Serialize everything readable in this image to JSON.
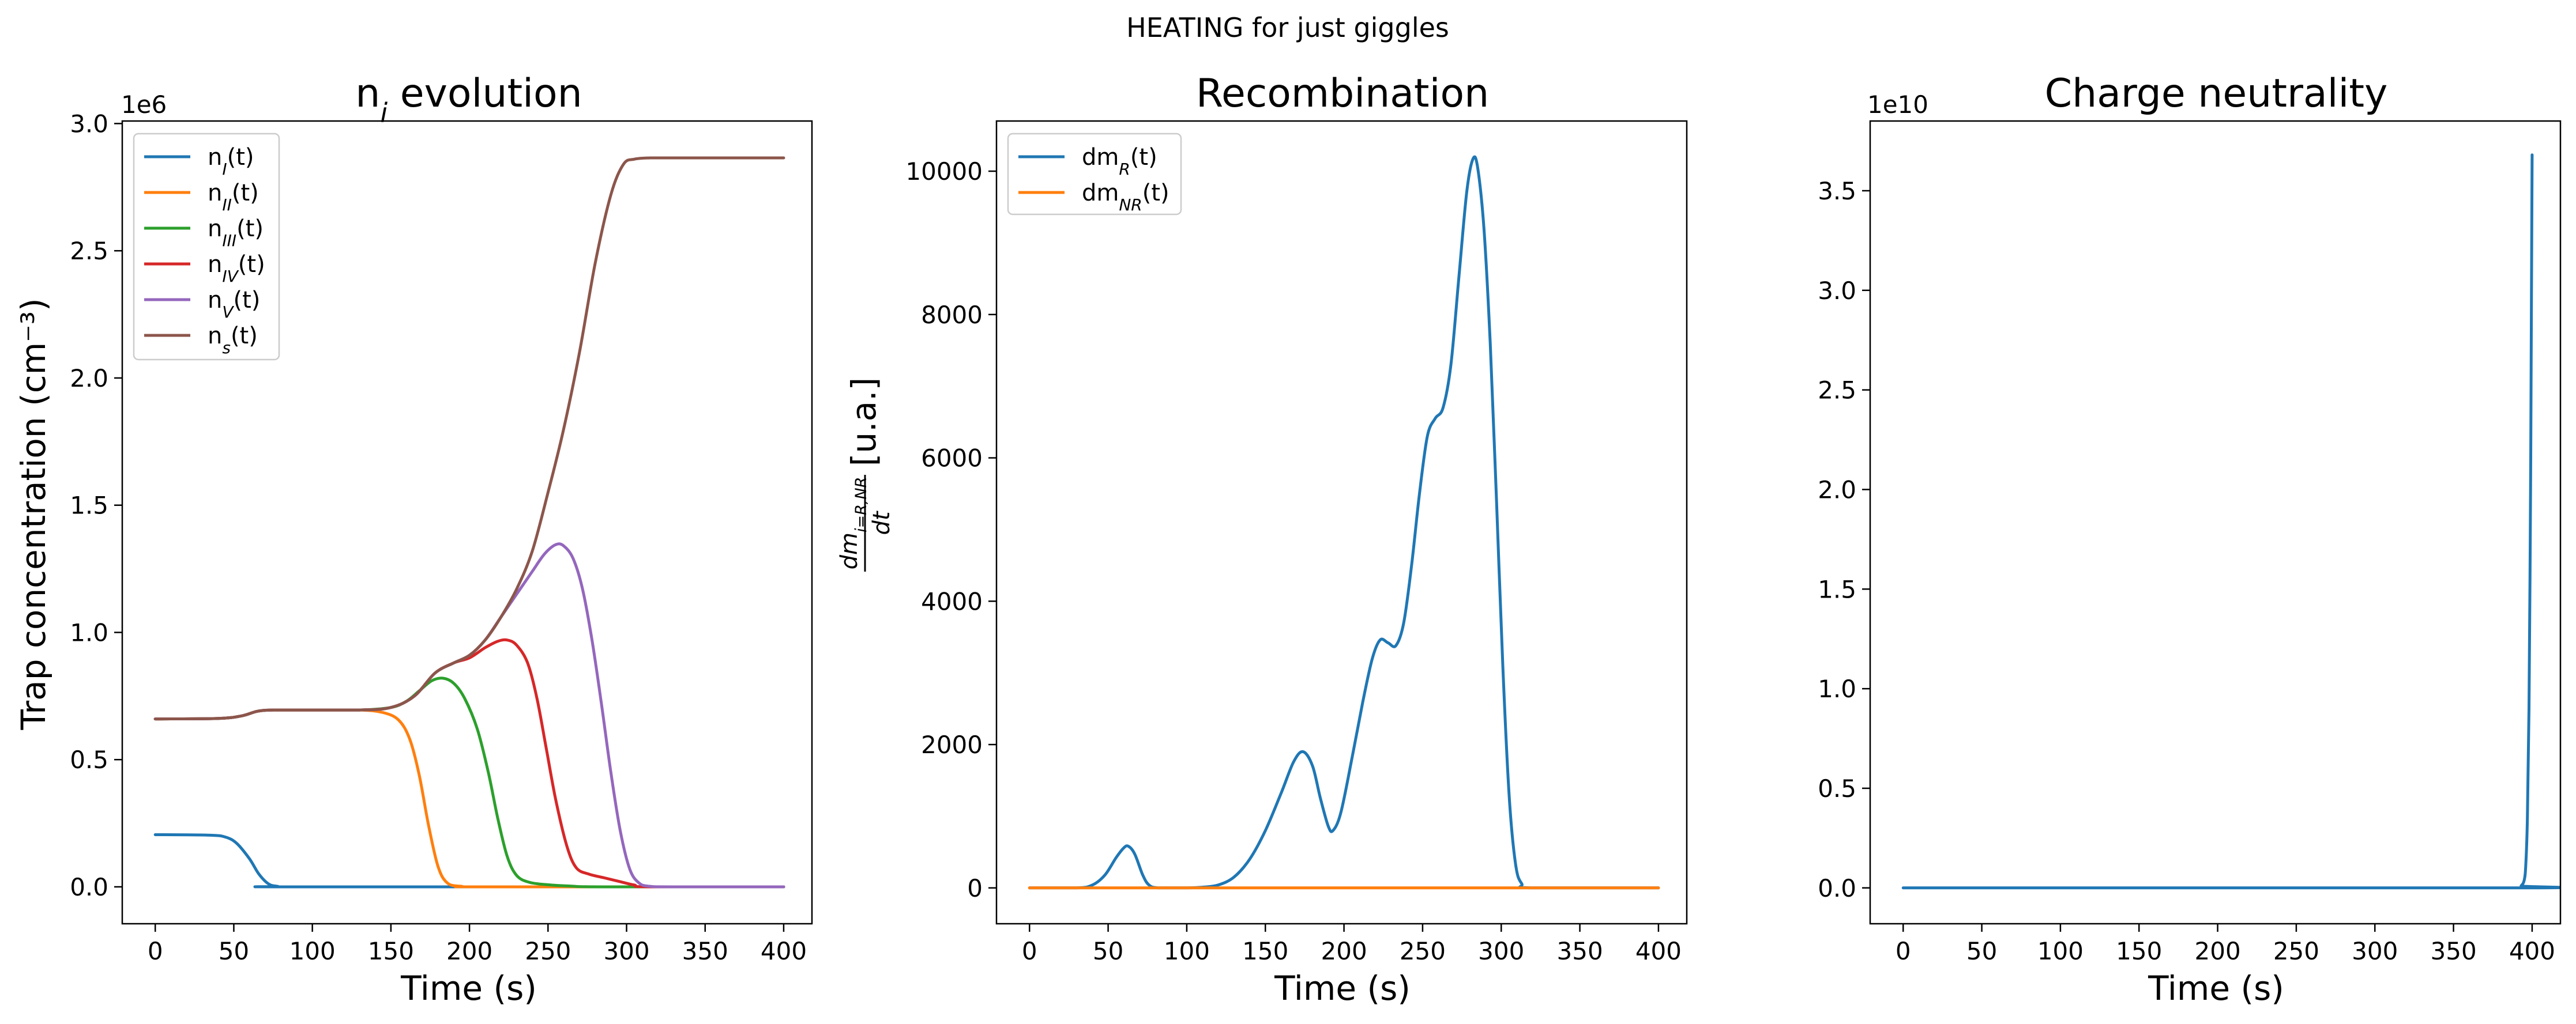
{
  "figure": {
    "suptitle": "HEATING for just giggles"
  },
  "chart_data": [
    {
      "type": "line",
      "title": "n_i evolution",
      "title_base": "n",
      "title_sub": "i",
      "title_rest": " evolution",
      "xlabel": "Time (s)",
      "ylabel": "Trap concentration (cm⁻³)",
      "y_offset_label": "1e6",
      "xlim": [
        -21,
        418
      ],
      "ylim": [
        -0.145,
        3.01
      ],
      "x_ticks": [
        0,
        50,
        100,
        150,
        200,
        250,
        300,
        350,
        400
      ],
      "x_tick_labels": [
        "0",
        "50",
        "100",
        "150",
        "200",
        "250",
        "300",
        "350",
        "400"
      ],
      "y_ticks": [
        0,
        0.5,
        1.0,
        1.5,
        2.0,
        2.5,
        3.0
      ],
      "y_tick_labels": [
        "0.0",
        "0.5",
        "1.0",
        "1.5",
        "2.0",
        "2.5",
        "3.0"
      ],
      "legend_position": "upper-left",
      "grid": false,
      "series": [
        {
          "name": "n_I(t)",
          "base": "n",
          "sub": "I",
          "rest": "(t)",
          "color": "#1f77b4",
          "points": [
            [
              0,
              0.205
            ],
            [
              35,
              0.203
            ],
            [
              45,
              0.195
            ],
            [
              52,
              0.17
            ],
            [
              60,
              0.11
            ],
            [
              66,
              0.05
            ],
            [
              72,
              0.012
            ],
            [
              78,
              0.002
            ],
            [
              90,
              0
            ],
            [
              400,
              0
            ]
          ]
        },
        {
          "name": "n_II(t)",
          "base": "n",
          "sub": "II",
          "rest": "(t)",
          "color": "#ff7f0e",
          "points": [
            [
              0,
              0.66
            ],
            [
              40,
              0.662
            ],
            [
              55,
              0.672
            ],
            [
              65,
              0.69
            ],
            [
              75,
              0.695
            ],
            [
              100,
              0.695
            ],
            [
              130,
              0.695
            ],
            [
              145,
              0.685
            ],
            [
              155,
              0.655
            ],
            [
              162,
              0.58
            ],
            [
              168,
              0.44
            ],
            [
              174,
              0.24
            ],
            [
              180,
              0.08
            ],
            [
              186,
              0.015
            ],
            [
              195,
              0.002
            ],
            [
              210,
              0
            ],
            [
              400,
              0
            ]
          ]
        },
        {
          "name": "n_III(t)",
          "base": "n",
          "sub": "III",
          "rest": "(t)",
          "color": "#2ca02c",
          "points": [
            [
              0,
              0.66
            ],
            [
              40,
              0.662
            ],
            [
              55,
              0.672
            ],
            [
              65,
              0.69
            ],
            [
              75,
              0.695
            ],
            [
              100,
              0.695
            ],
            [
              130,
              0.695
            ],
            [
              150,
              0.705
            ],
            [
              160,
              0.73
            ],
            [
              168,
              0.77
            ],
            [
              176,
              0.81
            ],
            [
              183,
              0.82
            ],
            [
              190,
              0.8
            ],
            [
              197,
              0.74
            ],
            [
              205,
              0.62
            ],
            [
              212,
              0.45
            ],
            [
              218,
              0.27
            ],
            [
              224,
              0.12
            ],
            [
              230,
              0.045
            ],
            [
              238,
              0.018
            ],
            [
              250,
              0.008
            ],
            [
              265,
              0.003
            ],
            [
              285,
              0
            ],
            [
              400,
              0
            ]
          ]
        },
        {
          "name": "n_IV(t)",
          "base": "n",
          "sub": "IV",
          "rest": "(t)",
          "color": "#d62728",
          "points": [
            [
              0,
              0.66
            ],
            [
              40,
              0.662
            ],
            [
              55,
              0.672
            ],
            [
              65,
              0.69
            ],
            [
              75,
              0.695
            ],
            [
              100,
              0.695
            ],
            [
              130,
              0.695
            ],
            [
              150,
              0.705
            ],
            [
              165,
              0.75
            ],
            [
              178,
              0.84
            ],
            [
              190,
              0.88
            ],
            [
              200,
              0.9
            ],
            [
              210,
              0.94
            ],
            [
              218,
              0.965
            ],
            [
              224,
              0.97
            ],
            [
              230,
              0.95
            ],
            [
              237,
              0.88
            ],
            [
              243,
              0.74
            ],
            [
              249,
              0.54
            ],
            [
              255,
              0.34
            ],
            [
              262,
              0.16
            ],
            [
              268,
              0.075
            ],
            [
              276,
              0.05
            ],
            [
              286,
              0.035
            ],
            [
              296,
              0.02
            ],
            [
              305,
              0.007
            ],
            [
              315,
              0
            ],
            [
              400,
              0
            ]
          ]
        },
        {
          "name": "n_V(t)",
          "base": "n",
          "sub": "V",
          "rest": "(t)",
          "color": "#9467bd",
          "points": [
            [
              0,
              0.66
            ],
            [
              40,
              0.662
            ],
            [
              55,
              0.672
            ],
            [
              65,
              0.69
            ],
            [
              75,
              0.695
            ],
            [
              100,
              0.695
            ],
            [
              130,
              0.695
            ],
            [
              150,
              0.705
            ],
            [
              165,
              0.75
            ],
            [
              178,
              0.84
            ],
            [
              190,
              0.88
            ],
            [
              200,
              0.91
            ],
            [
              210,
              0.97
            ],
            [
              220,
              1.06
            ],
            [
              230,
              1.15
            ],
            [
              240,
              1.24
            ],
            [
              248,
              1.31
            ],
            [
              255,
              1.345
            ],
            [
              260,
              1.34
            ],
            [
              266,
              1.29
            ],
            [
              272,
              1.17
            ],
            [
              278,
              0.97
            ],
            [
              284,
              0.72
            ],
            [
              290,
              0.45
            ],
            [
              296,
              0.22
            ],
            [
              302,
              0.07
            ],
            [
              308,
              0.015
            ],
            [
              315,
              0.002
            ],
            [
              330,
              0
            ],
            [
              400,
              0
            ]
          ]
        },
        {
          "name": "n_s(t)",
          "base": "n",
          "sub": "s",
          "rest": "(t)",
          "color": "#8c564b",
          "points": [
            [
              0,
              0.66
            ],
            [
              40,
              0.662
            ],
            [
              55,
              0.672
            ],
            [
              65,
              0.69
            ],
            [
              75,
              0.695
            ],
            [
              100,
              0.695
            ],
            [
              130,
              0.695
            ],
            [
              150,
              0.705
            ],
            [
              165,
              0.75
            ],
            [
              178,
              0.84
            ],
            [
              190,
              0.88
            ],
            [
              200,
              0.91
            ],
            [
              210,
              0.97
            ],
            [
              220,
              1.06
            ],
            [
              230,
              1.17
            ],
            [
              240,
              1.32
            ],
            [
              250,
              1.55
            ],
            [
              260,
              1.8
            ],
            [
              270,
              2.1
            ],
            [
              280,
              2.45
            ],
            [
              290,
              2.72
            ],
            [
              298,
              2.84
            ],
            [
              305,
              2.86
            ],
            [
              315,
              2.865
            ],
            [
              330,
              2.865
            ],
            [
              400,
              2.865
            ]
          ]
        }
      ]
    },
    {
      "type": "line",
      "title": "Recombination",
      "xlabel": "Time (s)",
      "ylabel": "dm_{i=R,NR}/dt [u.a.]",
      "ylabel_num": "dm",
      "ylabel_num_sub": "i=R,NR",
      "ylabel_den": "dt",
      "ylabel_unit": "[u.a.]",
      "xlim": [
        -21,
        418
      ],
      "ylim": [
        -500,
        10700
      ],
      "x_ticks": [
        0,
        50,
        100,
        150,
        200,
        250,
        300,
        350,
        400
      ],
      "x_tick_labels": [
        "0",
        "50",
        "100",
        "150",
        "200",
        "250",
        "300",
        "350",
        "400"
      ],
      "y_ticks": [
        0,
        2000,
        4000,
        6000,
        8000,
        10000
      ],
      "y_tick_labels": [
        "0",
        "2000",
        "4000",
        "6000",
        "8000",
        "10000"
      ],
      "legend_position": "upper-left",
      "grid": false,
      "series": [
        {
          "name": "dm_R(t)",
          "base": "dm",
          "sub": "R",
          "rest": "(t)",
          "color": "#1f77b4",
          "points": [
            [
              0,
              0
            ],
            [
              30,
              0
            ],
            [
              40,
              40
            ],
            [
              48,
              180
            ],
            [
              55,
              420
            ],
            [
              60,
              560
            ],
            [
              63,
              580
            ],
            [
              67,
              470
            ],
            [
              72,
              180
            ],
            [
              76,
              40
            ],
            [
              82,
              0
            ],
            [
              100,
              0
            ],
            [
              110,
              10
            ],
            [
              120,
              40
            ],
            [
              130,
              150
            ],
            [
              140,
              400
            ],
            [
              150,
              800
            ],
            [
              160,
              1320
            ],
            [
              168,
              1760
            ],
            [
              174,
              1900
            ],
            [
              180,
              1700
            ],
            [
              185,
              1250
            ],
            [
              190,
              860
            ],
            [
              193,
              800
            ],
            [
              198,
              1050
            ],
            [
              205,
              1800
            ],
            [
              212,
              2600
            ],
            [
              218,
              3200
            ],
            [
              223,
              3460
            ],
            [
              228,
              3420
            ],
            [
              233,
              3380
            ],
            [
              238,
              3700
            ],
            [
              243,
              4500
            ],
            [
              248,
              5500
            ],
            [
              253,
              6300
            ],
            [
              258,
              6550
            ],
            [
              263,
              6700
            ],
            [
              268,
              7300
            ],
            [
              273,
              8500
            ],
            [
              278,
              9700
            ],
            [
              282,
              10170
            ],
            [
              285,
              10050
            ],
            [
              289,
              9200
            ],
            [
              293,
              7600
            ],
            [
              297,
              5400
            ],
            [
              301,
              3100
            ],
            [
              305,
              1300
            ],
            [
              309,
              350
            ],
            [
              313,
              60
            ],
            [
              320,
              0
            ],
            [
              400,
              0
            ]
          ]
        },
        {
          "name": "dm_NR(t)",
          "base": "dm",
          "sub": "NR",
          "rest": "(t)",
          "color": "#ff7f0e",
          "points": [
            [
              0,
              0
            ],
            [
              100,
              0
            ],
            [
              200,
              0
            ],
            [
              300,
              0
            ],
            [
              400,
              0
            ]
          ]
        }
      ]
    },
    {
      "type": "line",
      "title": "Charge neutrality",
      "xlabel": "Time (s)",
      "y_offset_label": "1e10",
      "xlim": [
        -21,
        418
      ],
      "ylim": [
        -0.18,
        3.85
      ],
      "x_ticks": [
        0,
        50,
        100,
        150,
        200,
        250,
        300,
        350,
        400
      ],
      "x_tick_labels": [
        "0",
        "50",
        "100",
        "150",
        "200",
        "250",
        "300",
        "350",
        "400"
      ],
      "y_ticks": [
        0,
        0.5,
        1.0,
        1.5,
        2.0,
        2.5,
        3.0,
        3.5
      ],
      "y_tick_labels": [
        "0.0",
        "0.5",
        "1.0",
        "1.5",
        "2.0",
        "2.5",
        "3.0",
        "3.5"
      ],
      "grid": false,
      "series": [
        {
          "color": "#1f77b4",
          "points": [
            [
              0,
              0
            ],
            [
              390,
              0
            ],
            [
              393,
              0.01
            ],
            [
              395,
              0.04
            ],
            [
              396,
              0.12
            ],
            [
              397,
              0.35
            ],
            [
              398,
              0.9
            ],
            [
              399,
              2.0
            ],
            [
              399.6,
              3.0
            ],
            [
              400,
              3.68
            ]
          ]
        }
      ]
    }
  ]
}
